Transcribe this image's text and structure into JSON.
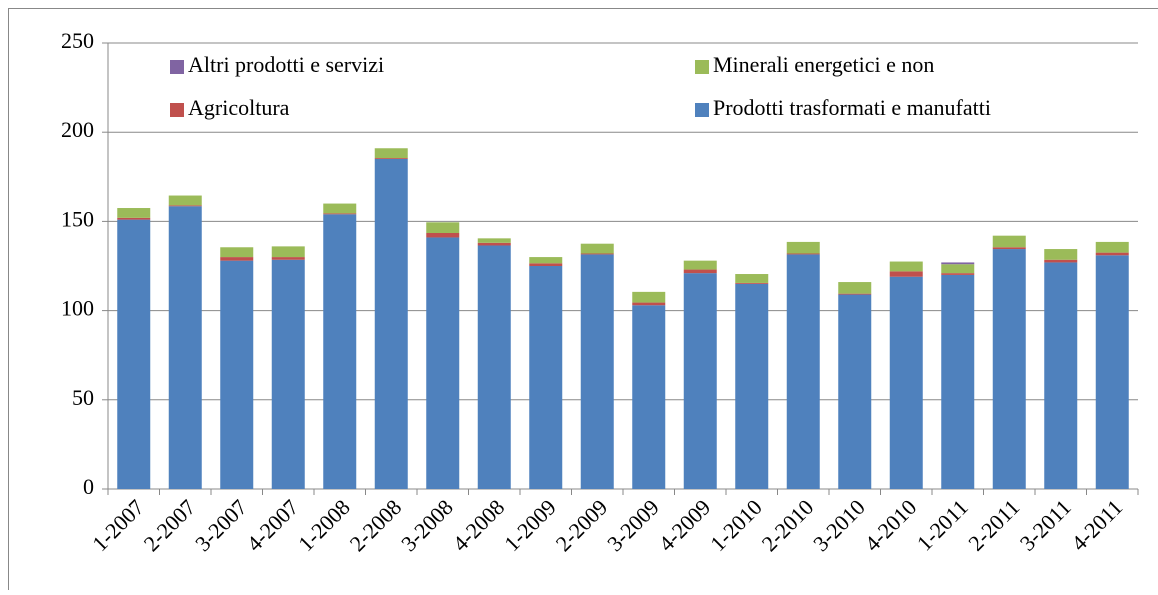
{
  "chart_data": {
    "type": "stacked_bar",
    "categories": [
      "1-2007",
      "2-2007",
      "3-2007",
      "4-2007",
      "1-2008",
      "2-2008",
      "3-2008",
      "4-2008",
      "1-2009",
      "2-2009",
      "3-2009",
      "4-2009",
      "1-2010",
      "2-2010",
      "3-2010",
      "4-2010",
      "1-2011",
      "2-2011",
      "3-2011",
      "4-2011"
    ],
    "series": [
      {
        "name": "Altri prodotti e servizi",
        "color": "#8064a2",
        "values": [
          0,
          0,
          0,
          0,
          0,
          0,
          0,
          0,
          0,
          0,
          0,
          0,
          0,
          0,
          0,
          0,
          1,
          0,
          0,
          0
        ]
      },
      {
        "name": "Minerali energetici e non",
        "color": "#9bbb59",
        "values": [
          5.5,
          5.5,
          5.5,
          6,
          5.5,
          5.5,
          6,
          2.5,
          3.5,
          5.5,
          6,
          5,
          5,
          6.5,
          6.5,
          5.5,
          5,
          6.5,
          6,
          6
        ]
      },
      {
        "name": "Agricoltura",
        "color": "#c0504d",
        "values": [
          1,
          0.5,
          2,
          1.5,
          0.5,
          0.5,
          2.5,
          1.5,
          1.5,
          0.5,
          1.5,
          2,
          0.5,
          0.5,
          0.5,
          3,
          1,
          1,
          1.5,
          1.5
        ]
      },
      {
        "name": "Prodotti trasformati e manufatti",
        "color": "#4f81bd",
        "values": [
          151,
          158.5,
          128,
          128.5,
          154,
          185,
          141,
          136.5,
          125,
          131.5,
          103,
          121,
          115,
          131.5,
          109,
          119,
          120,
          134.5,
          127,
          131
        ]
      }
    ],
    "ylim": [
      0,
      250
    ],
    "yticks": [
      0,
      50,
      100,
      150,
      200,
      250
    ],
    "grid": true
  }
}
